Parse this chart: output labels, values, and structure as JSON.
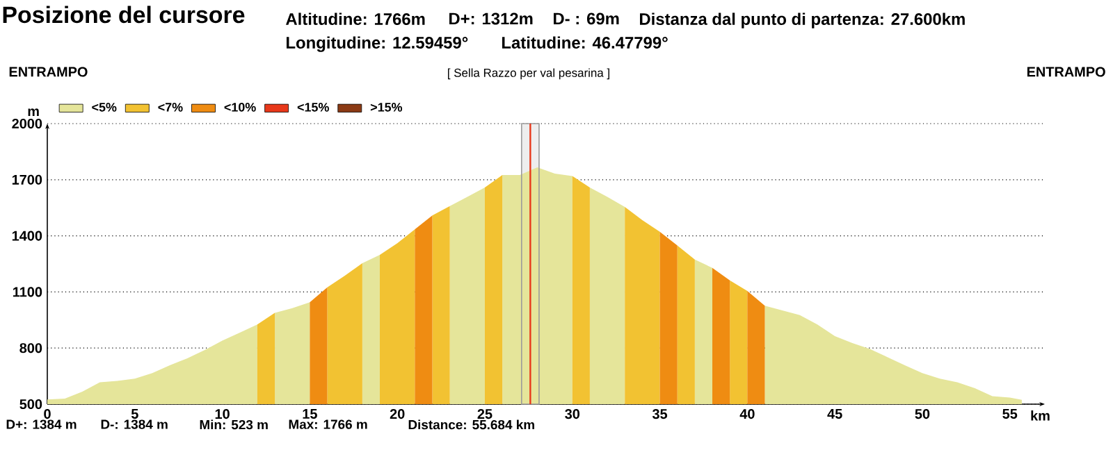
{
  "chart_data": {
    "type": "area",
    "title": "Posizione del cursore",
    "xlabel": "km",
    "ylabel": "m",
    "annotations": [
      "Altitudine: 1766m",
      "D+: 1312m",
      "D- : 69m",
      "Distanza dal punto di partenza: 27.600km",
      "Longitudine: 12.59459°",
      "Latitudine: 46.47799°",
      "ENTRAMPO",
      "[ Sella Razzo per val pesarina ]",
      "ENTRAMPO",
      "D+: 1384 m",
      "D-: 1384 m",
      "Min: 523 m",
      "Max: 1766 m",
      "Distance: 55.684 km"
    ],
    "series": [
      {
        "name": "<5%",
        "color": "#e5e59a",
        "x": [
          0,
          1,
          2,
          3,
          4,
          5,
          6,
          7,
          8,
          9,
          10,
          11,
          12,
          12.5,
          13,
          14,
          15,
          16.5,
          18,
          19,
          21,
          23,
          24,
          25,
          25.5,
          26,
          27,
          28,
          29,
          30,
          30.5,
          31,
          32,
          33,
          35,
          37,
          38,
          39.5,
          41,
          42,
          43,
          44,
          45,
          46,
          47,
          48,
          49,
          50,
          51,
          52,
          53,
          54,
          55,
          55.684
        ],
        "values": [
          525,
          530,
          567,
          617,
          624,
          636,
          666,
          708,
          745,
          790,
          840,
          882,
          926,
          null,
          988,
          1013,
          1045,
          null,
          1254,
          1298,
          null,
          1559,
          1608,
          1658,
          null,
          1725,
          1725,
          1766,
          1733,
          1720,
          null,
          1658,
          1608,
          1554,
          null,
          1273,
          1229,
          null,
          1026,
          1001,
          976,
          926,
          864,
          827,
          795,
          752,
          708,
          666,
          636,
          617,
          585,
          543,
          535,
          523
        ]
      },
      {
        "name": "<7%",
        "color": "#f2c232",
        "x": [
          12,
          13,
          14.5,
          16,
          17,
          18,
          18.5,
          19,
          20,
          21,
          21.5,
          22,
          23,
          24,
          25,
          26,
          28,
          30,
          31,
          32,
          33,
          34,
          35,
          35.5,
          36,
          37,
          38,
          39,
          40
        ],
        "values": [
          926,
          988,
          null,
          1125,
          1187,
          1254,
          null,
          1298,
          1360,
          1435,
          null,
          1509,
          1559,
          null,
          1658,
          1725,
          null,
          1720,
          1658,
          null,
          1554,
          1484,
          1422,
          null,
          1348,
          1273,
          null,
          1162,
          1105
        ]
      },
      {
        "name": "<10%",
        "color": "#ef8c12",
        "x": [
          15,
          16,
          18,
          21,
          22,
          28,
          35,
          36,
          37,
          38,
          39,
          39.5,
          40,
          41
        ],
        "values": [
          1045,
          1125,
          null,
          1435,
          1509,
          null,
          1422,
          1348,
          null,
          1229,
          1162,
          null,
          1105,
          1026
        ]
      },
      {
        "name": "<15%",
        "color": "#e8381a"
      },
      {
        "name": ">15%",
        "color": "#8b3a14"
      }
    ],
    "xlim": [
      0,
      57
    ],
    "xticks": [
      0,
      5,
      10,
      15,
      20,
      25,
      30,
      35,
      40,
      45,
      50,
      55
    ],
    "ylim": [
      500,
      2000
    ],
    "yticks": [
      500,
      800,
      1100,
      1400,
      1700,
      2000
    ],
    "ref_lines": [
      {
        "axis": "x",
        "value": 27.6,
        "color": "#e8381a"
      }
    ],
    "bands": [
      {
        "axis": "x",
        "from": 27.1,
        "to": 28.1,
        "color": "#eeeeee"
      }
    ],
    "grid": "y",
    "legend": "top left"
  }
}
